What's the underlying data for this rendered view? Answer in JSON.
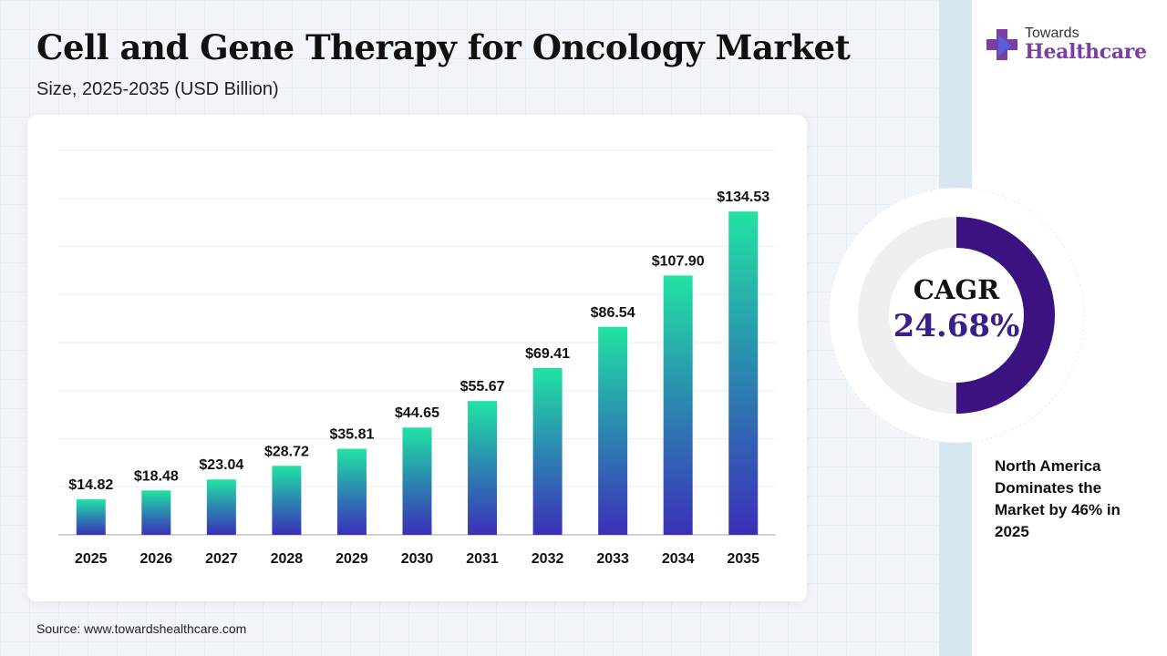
{
  "header": {
    "title": "Cell and Gene Therapy for Oncology Market",
    "subtitle": "Size, 2025-2035 (USD Billion)"
  },
  "brand": {
    "top": "Towards",
    "name": "Healthcare",
    "colors": {
      "purple": "#7b3fa3",
      "blue": "#4a6cf0"
    }
  },
  "source": "Source: www.towardshealthcare.com",
  "cagr": {
    "label": "CAGR",
    "value": "24.68%",
    "ring_fill_fraction": 0.5,
    "colors": {
      "ring": "#3a1380",
      "track": "#efeff2",
      "value_text": "#3a1f8a"
    }
  },
  "note": "North America Dominates the Market by 46% in 2025",
  "chart_data": {
    "type": "bar",
    "categories": [
      "2025",
      "2026",
      "2027",
      "2028",
      "2029",
      "2030",
      "2031",
      "2032",
      "2033",
      "2034",
      "2035"
    ],
    "values": [
      14.82,
      18.48,
      23.04,
      28.72,
      35.81,
      44.65,
      55.67,
      69.41,
      86.54,
      107.9,
      134.53
    ],
    "data_labels": [
      "$14.82",
      "$18.48",
      "$23.04",
      "$28.72",
      "$35.81",
      "$44.65",
      "$55.67",
      "$69.41",
      "$86.54",
      "$107.90",
      "$134.53"
    ],
    "title": "Cell and Gene Therapy for Oncology Market",
    "xlabel": "",
    "ylabel": "",
    "ylim": [
      0,
      160
    ],
    "grid": true,
    "colors": {
      "bar_top": "#22e3a3",
      "bar_mid": "#2a8fb0",
      "bar_bottom": "#3b2fb8"
    }
  }
}
